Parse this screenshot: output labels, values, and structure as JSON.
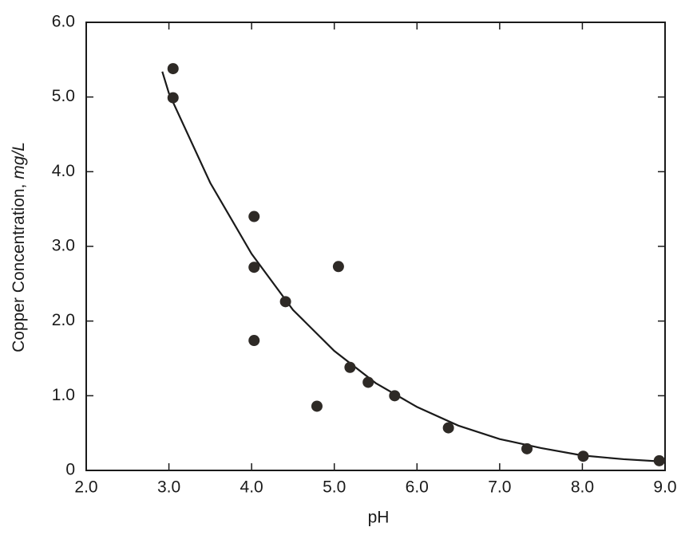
{
  "chart_data": {
    "type": "scatter",
    "x_label": "pH",
    "y_label": "Copper Concentration, ",
    "y_label_unit": "mg/L",
    "x": [
      3.05,
      3.05,
      4.03,
      4.03,
      4.03,
      4.41,
      4.79,
      5.05,
      5.19,
      5.41,
      5.73,
      6.38,
      7.33,
      8.01,
      8.93
    ],
    "values": [
      5.38,
      4.99,
      3.4,
      2.72,
      1.74,
      2.26,
      0.86,
      2.73,
      1.38,
      1.18,
      1.0,
      0.57,
      0.29,
      0.19,
      0.13
    ],
    "color": "#2e2a26",
    "fit": {
      "x": [
        2.92,
        3.0,
        3.5,
        4.0,
        4.5,
        5.0,
        5.5,
        6.0,
        6.5,
        7.0,
        7.5,
        8.0,
        8.5,
        8.95
      ],
      "values": [
        5.34,
        5.05,
        3.85,
        2.9,
        2.15,
        1.6,
        1.17,
        0.85,
        0.6,
        0.42,
        0.3,
        0.2,
        0.15,
        0.12
      ],
      "color": "#1a1a1a"
    },
    "xlim": [
      2.0,
      9.0
    ],
    "xticks": [
      {
        "value": 2,
        "label": "2.0"
      },
      {
        "value": 3,
        "label": "3.0"
      },
      {
        "value": 4,
        "label": "4.0"
      },
      {
        "value": 5,
        "label": "5.0"
      },
      {
        "value": 6,
        "label": "6.0"
      },
      {
        "value": 7,
        "label": "7.0"
      },
      {
        "value": 8,
        "label": "8.0"
      },
      {
        "value": 9,
        "label": "9.0"
      }
    ],
    "ylim": [
      0,
      6.0
    ],
    "yticks": [
      0,
      {
        "value": 1,
        "label": "1.0"
      },
      {
        "value": 2,
        "label": "2.0"
      },
      {
        "value": 3,
        "label": "3.0"
      },
      {
        "value": 4,
        "label": "4.0"
      },
      {
        "value": 5,
        "label": "5.0"
      },
      {
        "value": 6,
        "label": "6.0"
      }
    ]
  }
}
